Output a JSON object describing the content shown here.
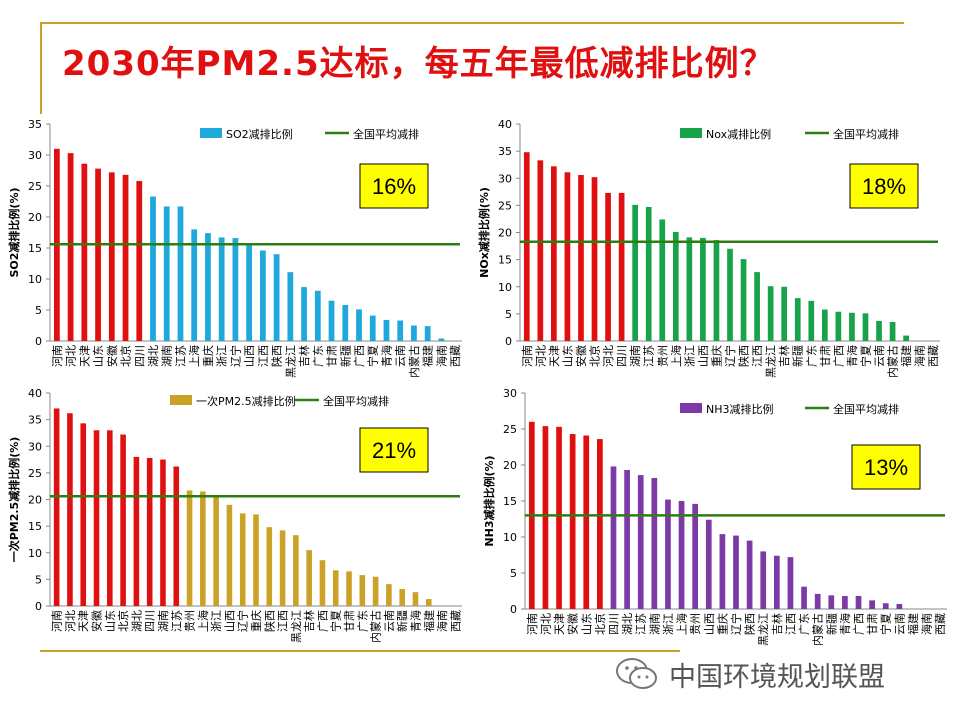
{
  "page": {
    "title": "2030年PM2.5达标，每五年最低减排比例？",
    "watermark": "中国环境规划联盟",
    "colors": {
      "title": "#e01010",
      "accent_line": "#c9a227",
      "highlight_red": "#e01010"
    }
  },
  "chart_data": [
    {
      "type": "bar",
      "ylabel": "SO2减排比例(%)",
      "ylim": [
        0,
        35
      ],
      "yticks": [
        0,
        5,
        10,
        15,
        20,
        25,
        30,
        35
      ],
      "categories": [
        "河南",
        "河北",
        "天津",
        "山东",
        "安徽",
        "北京",
        "四川",
        "湖北",
        "湖南",
        "江苏",
        "上海",
        "重庆",
        "浙江",
        "辽宁",
        "山西",
        "江西",
        "陕西",
        "黑龙江",
        "吉林",
        "广东",
        "甘肃",
        "新疆",
        "广西",
        "宁夏",
        "青海",
        "云南",
        "内蒙古",
        "福建",
        "海南",
        "西藏"
      ],
      "values": [
        31,
        30.3,
        28.6,
        27.8,
        27.2,
        26.8,
        25.8,
        23.3,
        21.7,
        21.7,
        18,
        17.4,
        16.7,
        16.6,
        15.6,
        14.6,
        14,
        11.1,
        8.7,
        8.1,
        6.5,
        5.8,
        5.1,
        4.1,
        3.4,
        3.3,
        2.5,
        2.4,
        0.4,
        0
      ],
      "highlight_count": 7,
      "highlight_color": "#e01010",
      "series_color": "#1fa8dc",
      "legend": "SO2减排比例",
      "avg_label": "全国平均减排",
      "avg_value": 15.6,
      "avg_color": "#2e7d12",
      "callout": "16%",
      "legend_position": "top-right",
      "grid": false
    },
    {
      "type": "bar",
      "ylabel": "NOx减排比例(%)",
      "ylim": [
        0,
        40
      ],
      "yticks": [
        0,
        5,
        10,
        15,
        20,
        25,
        30,
        35,
        40
      ],
      "categories": [
        "河南",
        "河北",
        "天津",
        "山东",
        "安徽",
        "北京",
        "河北",
        "四川",
        "湖南",
        "江苏",
        "贵州",
        "上海",
        "浙江",
        "山西",
        "重庆",
        "辽宁",
        "陕西",
        "江西",
        "黑龙江",
        "吉林",
        "新疆",
        "广东",
        "甘肃",
        "广西",
        "青海",
        "宁夏",
        "云南",
        "内蒙古",
        "福建",
        "海南",
        "西藏"
      ],
      "values": [
        34.8,
        33.3,
        32.2,
        31.1,
        30.6,
        30.2,
        27.3,
        27.3,
        25.1,
        24.7,
        22.4,
        20.1,
        19.1,
        19,
        18.6,
        17,
        15.1,
        12.7,
        10.1,
        10,
        7.9,
        7.4,
        5.8,
        5.4,
        5.2,
        5.1,
        3.7,
        3.5,
        1,
        0,
        0
      ],
      "highlight_count": 8,
      "highlight_color": "#e01010",
      "series_color": "#18a24a",
      "legend": "Nox减排比例",
      "avg_label": "全国平均减排",
      "avg_value": 18.3,
      "avg_color": "#2e7d12",
      "callout": "18%",
      "legend_position": "top-right",
      "grid": false
    },
    {
      "type": "bar",
      "ylabel": "一次PM2.5减排比例(%)",
      "ylim": [
        0,
        40
      ],
      "yticks": [
        0,
        5,
        10,
        15,
        20,
        25,
        30,
        35,
        40
      ],
      "categories": [
        "河南",
        "河北",
        "天津",
        "安徽",
        "山东",
        "北京",
        "湖北",
        "四川",
        "湖南",
        "江苏",
        "贵州",
        "上海",
        "浙江",
        "山西",
        "辽宁",
        "重庆",
        "陕西",
        "江西",
        "黑龙江",
        "吉林",
        "广西",
        "宁夏",
        "甘肃",
        "广东",
        "内蒙古",
        "云南",
        "新疆",
        "青海",
        "福建",
        "海南",
        "西藏"
      ],
      "values": [
        37.1,
        36.2,
        34.3,
        33,
        33,
        32.2,
        28,
        27.8,
        27.5,
        26.2,
        21.7,
        21.5,
        20.6,
        19,
        17.4,
        17.2,
        14.8,
        14.2,
        13.3,
        10.5,
        8.6,
        6.7,
        6.5,
        5.8,
        5.5,
        4.1,
        3.2,
        2.6,
        1.3,
        0,
        0
      ],
      "highlight_count": 10,
      "highlight_color": "#e01010",
      "series_color": "#c9a227",
      "legend": "一次PM2.5减排比例",
      "avg_label": "全国平均减排",
      "avg_value": 20.6,
      "avg_color": "#2e7d12",
      "callout": "21%",
      "legend_position": "top-right",
      "grid": false
    },
    {
      "type": "bar",
      "ylabel": "NH3减排比例(%)",
      "ylim": [
        0,
        30
      ],
      "yticks": [
        0,
        5,
        10,
        15,
        20,
        25,
        30
      ],
      "categories": [
        "河南",
        "河北",
        "天津",
        "安徽",
        "山东",
        "北京",
        "四川",
        "湖北",
        "江苏",
        "湖南",
        "浙江",
        "上海",
        "贵州",
        "山西",
        "重庆",
        "辽宁",
        "陕西",
        "黑龙江",
        "吉林",
        "江西",
        "广东",
        "内蒙古",
        "新疆",
        "青海",
        "广西",
        "甘肃",
        "宁夏",
        "云南",
        "福建",
        "海南",
        "西藏"
      ],
      "values": [
        26,
        25.4,
        25.3,
        24.3,
        24.1,
        23.6,
        19.8,
        19.3,
        18.6,
        18.2,
        15.2,
        15,
        14.6,
        12.4,
        10.4,
        10.2,
        9.5,
        8,
        7.4,
        7.2,
        3.1,
        2.1,
        1.9,
        1.8,
        1.8,
        1.2,
        0.8,
        0.7,
        0,
        0,
        0
      ],
      "highlight_count": 6,
      "highlight_color": "#e01010",
      "series_color": "#7c3aa6",
      "legend": "NH3减排比例",
      "avg_label": "全国平均减排",
      "avg_value": 13,
      "avg_color": "#2e7d12",
      "callout": "13%",
      "legend_position": "top-right",
      "grid": false
    }
  ]
}
